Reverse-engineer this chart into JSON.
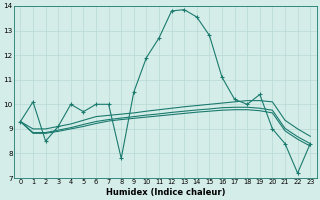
{
  "xlabel": "Humidex (Indice chaleur)",
  "x": [
    0,
    1,
    2,
    3,
    4,
    5,
    6,
    7,
    8,
    9,
    10,
    11,
    12,
    13,
    14,
    15,
    16,
    17,
    18,
    19,
    20,
    21,
    22,
    23
  ],
  "line_main": [
    9.3,
    10.1,
    8.5,
    9.1,
    10.0,
    9.7,
    10.0,
    10.0,
    7.8,
    10.5,
    11.9,
    12.7,
    13.8,
    13.85,
    13.55,
    12.8,
    11.1,
    10.2,
    10.0,
    10.4,
    9.0,
    8.4,
    7.2,
    8.4
  ],
  "line_upper": [
    9.3,
    9.0,
    9.0,
    9.1,
    9.2,
    9.35,
    9.5,
    9.55,
    9.6,
    9.65,
    9.72,
    9.78,
    9.84,
    9.9,
    9.95,
    10.0,
    10.05,
    10.1,
    10.15,
    10.15,
    10.1,
    9.35,
    9.0,
    8.7
  ],
  "line_mid": [
    9.3,
    8.85,
    8.85,
    8.95,
    9.05,
    9.18,
    9.3,
    9.38,
    9.44,
    9.5,
    9.56,
    9.61,
    9.67,
    9.72,
    9.77,
    9.81,
    9.86,
    9.88,
    9.88,
    9.84,
    9.76,
    9.02,
    8.68,
    8.4
  ],
  "line_lower": [
    9.3,
    8.82,
    8.82,
    8.9,
    9.0,
    9.1,
    9.22,
    9.32,
    9.38,
    9.43,
    9.48,
    9.53,
    9.58,
    9.63,
    9.68,
    9.72,
    9.76,
    9.78,
    9.78,
    9.74,
    9.65,
    8.92,
    8.58,
    8.3
  ],
  "color": "#1a7a6e",
  "bg_color": "#d5ede9",
  "grid_color": "#b8d8d4",
  "ylim": [
    7,
    14
  ],
  "yticks": [
    7,
    8,
    9,
    10,
    11,
    12,
    13,
    14
  ],
  "xticks": [
    0,
    1,
    2,
    3,
    4,
    5,
    6,
    7,
    8,
    9,
    10,
    11,
    12,
    13,
    14,
    15,
    16,
    17,
    18,
    19,
    20,
    21,
    22,
    23
  ]
}
